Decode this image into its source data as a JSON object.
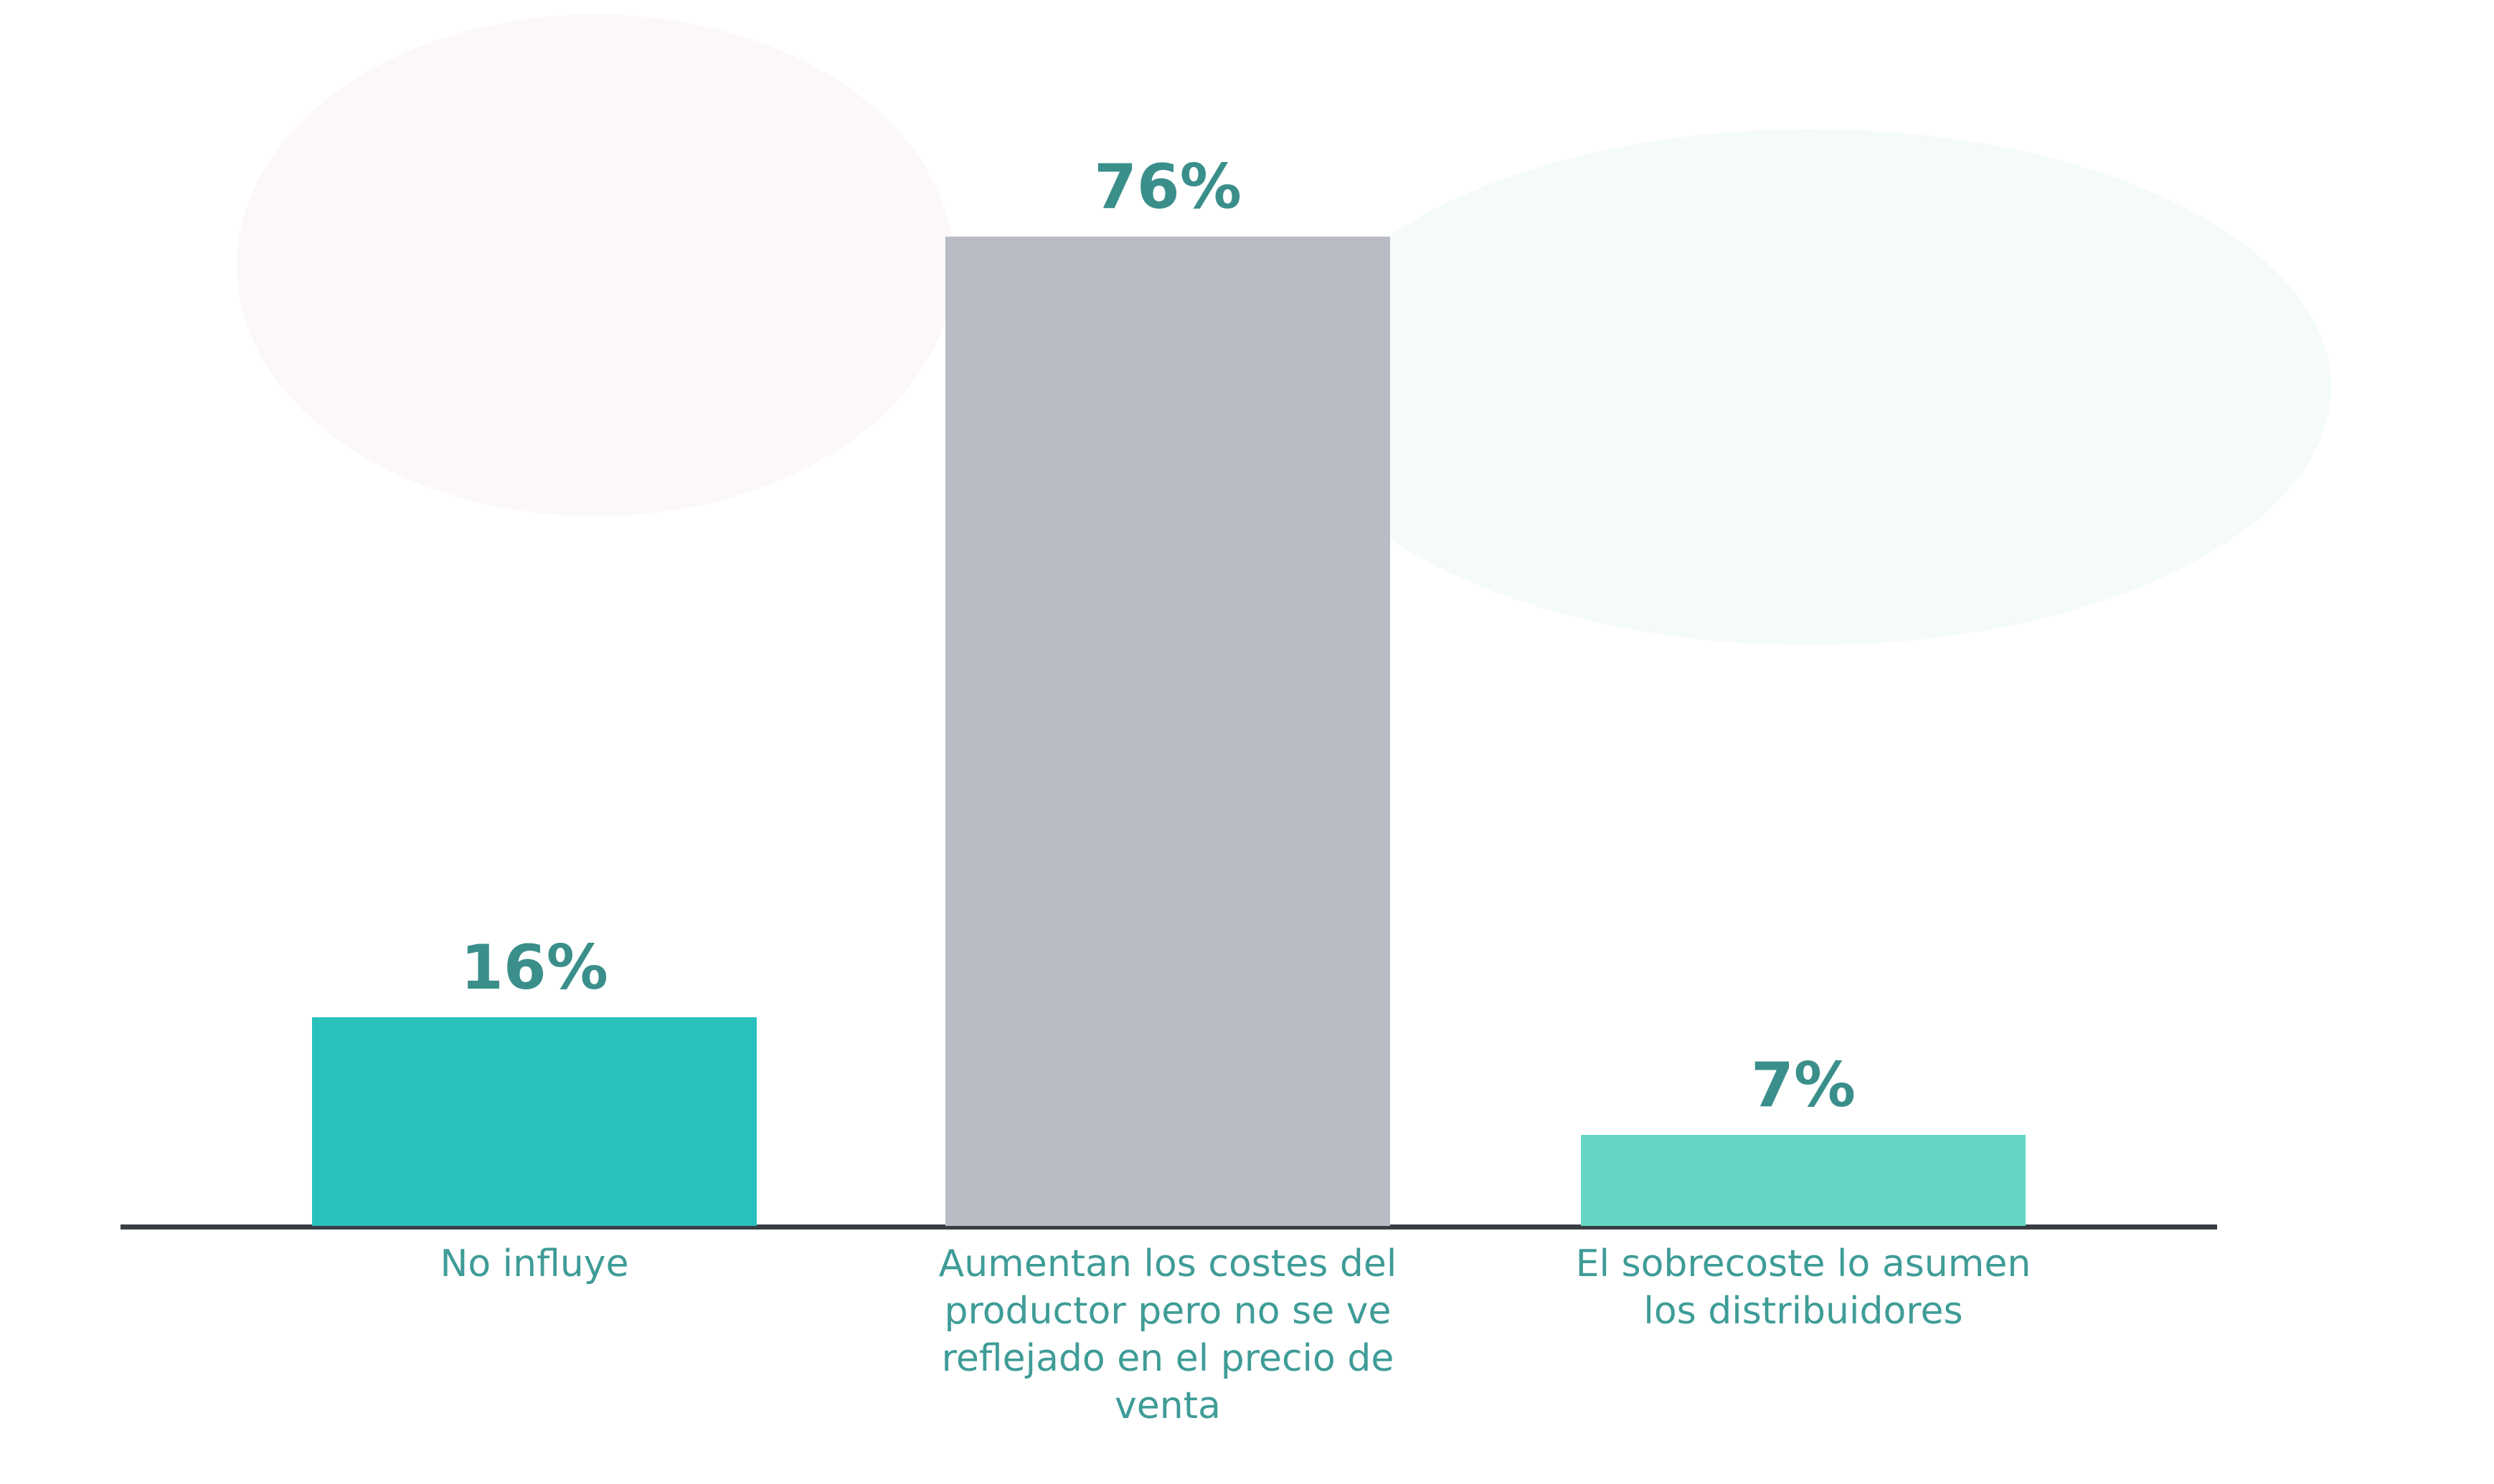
{
  "chart_data": {
    "type": "bar",
    "categories": [
      "No influye",
      "Aumentan los costes del productor pero no se ve reflejado en el precio de venta",
      "El sobrecoste lo asumen los distribuidores"
    ],
    "values": [
      16,
      76,
      7
    ],
    "value_labels": [
      "16%",
      "76%",
      "7%"
    ],
    "colors": [
      "#29c1bd",
      "#b9bcc4",
      "#66d6c4"
    ]
  }
}
